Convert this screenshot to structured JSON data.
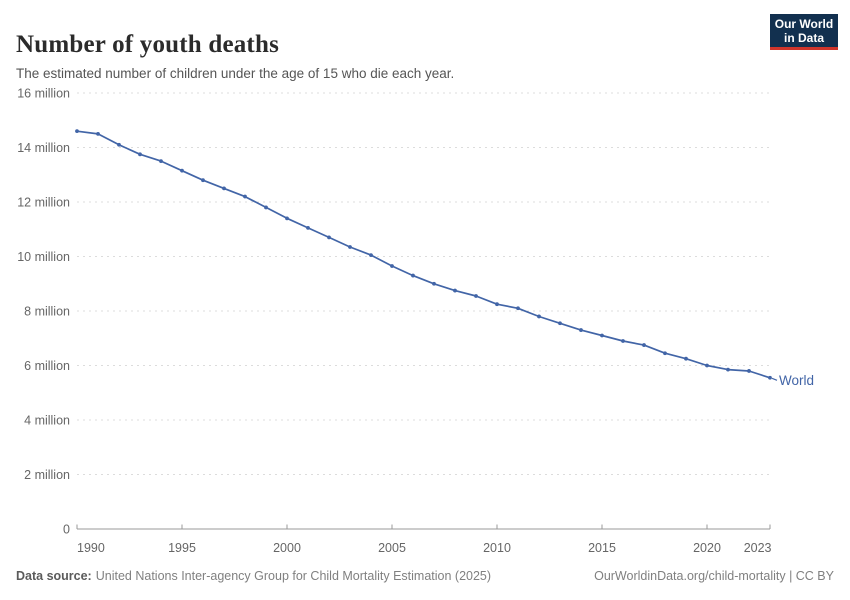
{
  "chart_data": {
    "type": "line",
    "title": "Number of youth deaths",
    "subtitle": "The estimated number of children under the age of 15 who die each year.",
    "unit": "million",
    "x": [
      1990,
      1991,
      1992,
      1993,
      1994,
      1995,
      1996,
      1997,
      1998,
      1999,
      2000,
      2001,
      2002,
      2003,
      2004,
      2005,
      2006,
      2007,
      2008,
      2009,
      2010,
      2011,
      2012,
      2013,
      2014,
      2015,
      2016,
      2017,
      2018,
      2019,
      2020,
      2021,
      2022,
      2023
    ],
    "series": [
      {
        "name": "World",
        "values": [
          14.6,
          14.5,
          14.1,
          13.75,
          13.5,
          13.15,
          12.8,
          12.5,
          12.2,
          11.8,
          11.4,
          11.05,
          10.7,
          10.35,
          10.05,
          9.65,
          9.3,
          9.0,
          8.75,
          8.55,
          8.25,
          8.1,
          7.8,
          7.55,
          7.3,
          7.1,
          6.9,
          6.75,
          6.45,
          6.25,
          6.0,
          5.85,
          5.8,
          5.55
        ]
      }
    ],
    "xlim": [
      1990,
      2023
    ],
    "ylim": [
      0,
      16
    ],
    "x_ticks": [
      1990,
      1995,
      2000,
      2005,
      2010,
      2015,
      2020,
      2023
    ],
    "y_ticks": [
      0,
      2,
      4,
      6,
      8,
      10,
      12,
      14,
      16
    ],
    "y_tick_suffix": " million",
    "grid": "horizontal-dashed",
    "legend_position": "right-of-last-point",
    "markers": true
  },
  "logo": {
    "line1": "Our World",
    "line2": "in Data"
  },
  "footer": {
    "source_label": "Data source:",
    "source_text": "United Nations Inter-agency Group for Child Mortality Estimation (2025)",
    "right_text": "OurWorldinData.org/child-mortality | CC BY"
  },
  "colors": {
    "line": "#4265a7",
    "grid": "#dcdcdc",
    "axis": "#999999",
    "tick_label": "#666666",
    "title": "#2b2b2b",
    "subtitle": "#555555",
    "footer": "#808080",
    "logo_bg": "#12304f",
    "logo_accent": "#d0352b"
  }
}
